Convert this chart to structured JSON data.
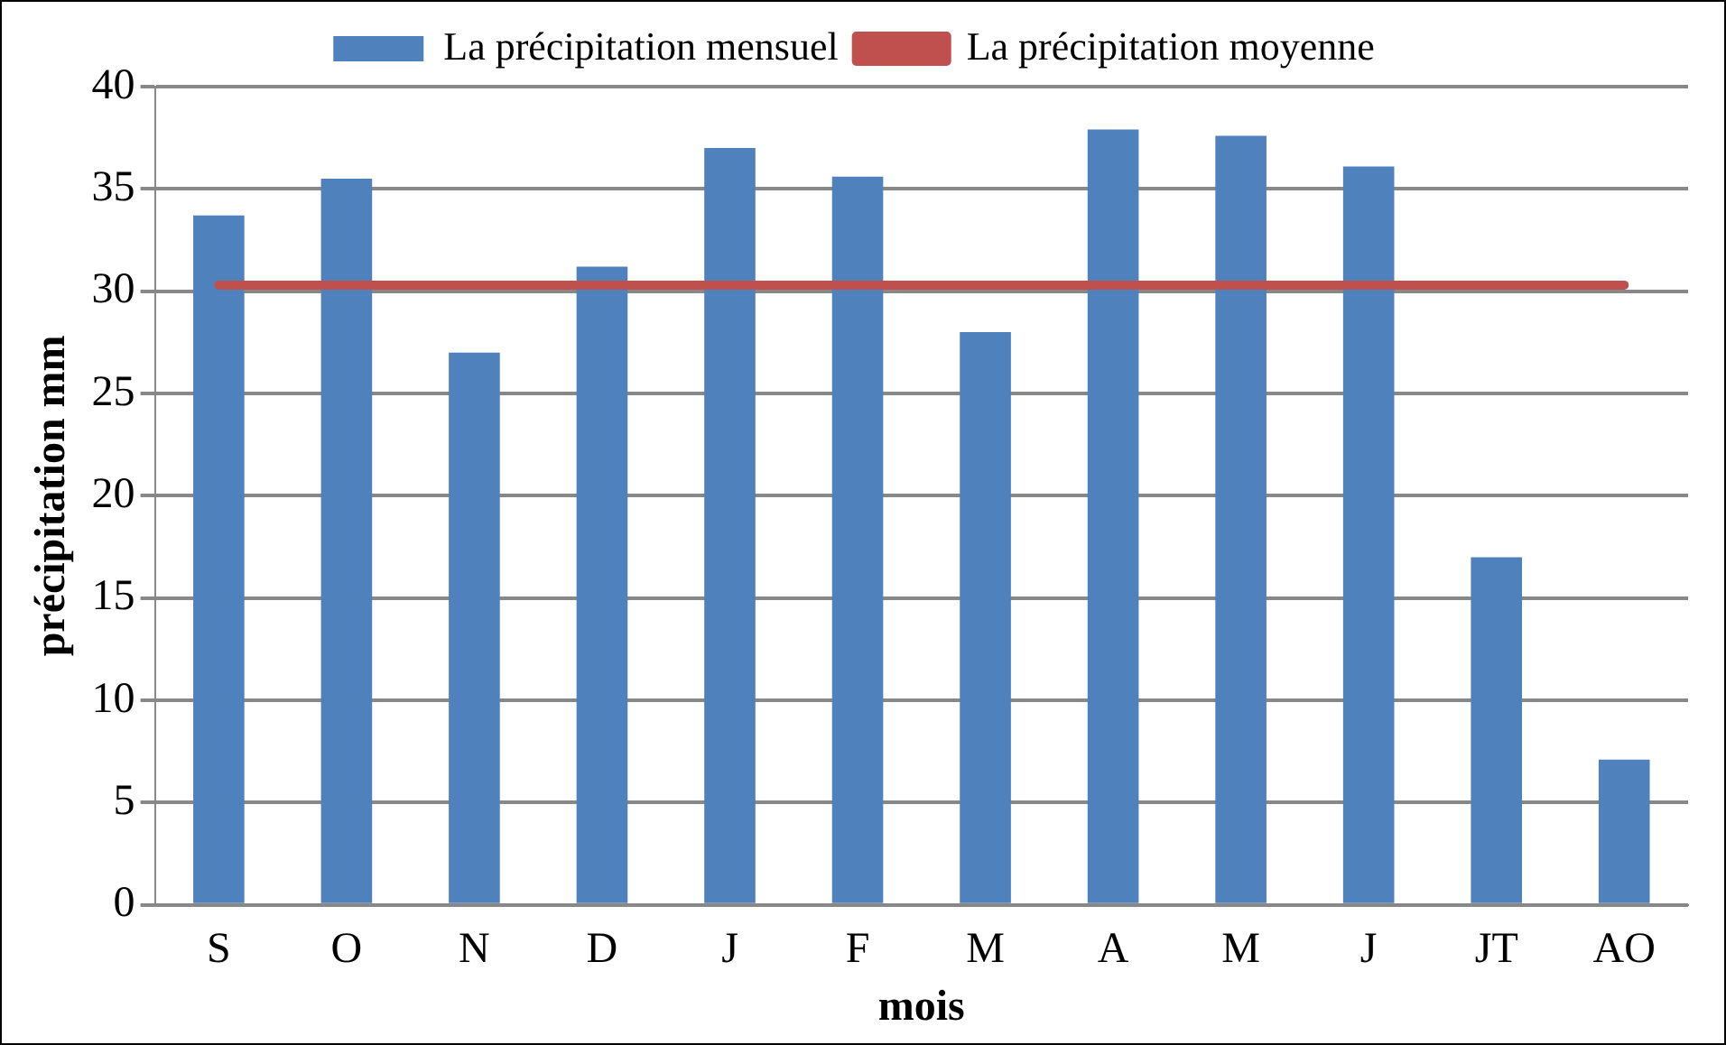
{
  "chart_data": {
    "type": "bar",
    "xlabel": "mois",
    "ylabel": "précipitation mm",
    "categories": [
      "S",
      "O",
      "N",
      "D",
      "J",
      "F",
      "M",
      "A",
      "M",
      "J",
      "JT",
      "AO"
    ],
    "series": [
      {
        "name": "La précipitation mensuel",
        "color": "#4f81bd",
        "values": [
          33.7,
          35.5,
          27.0,
          31.2,
          37.0,
          35.6,
          28.0,
          37.9,
          37.6,
          36.1,
          17.0,
          7.1
        ]
      },
      {
        "name": "La précipitation moyenne",
        "type": "line",
        "color": "#c0504d",
        "values": [
          30.3,
          30.3,
          30.3,
          30.3,
          30.3,
          30.3,
          30.3,
          30.3,
          30.3,
          30.3,
          30.3,
          30.3
        ]
      }
    ],
    "ylim": [
      0,
      40
    ],
    "yticks": [
      0,
      5,
      10,
      15,
      20,
      25,
      30,
      35,
      40
    ],
    "grid": "y",
    "legend": "top",
    "marker": "none"
  }
}
